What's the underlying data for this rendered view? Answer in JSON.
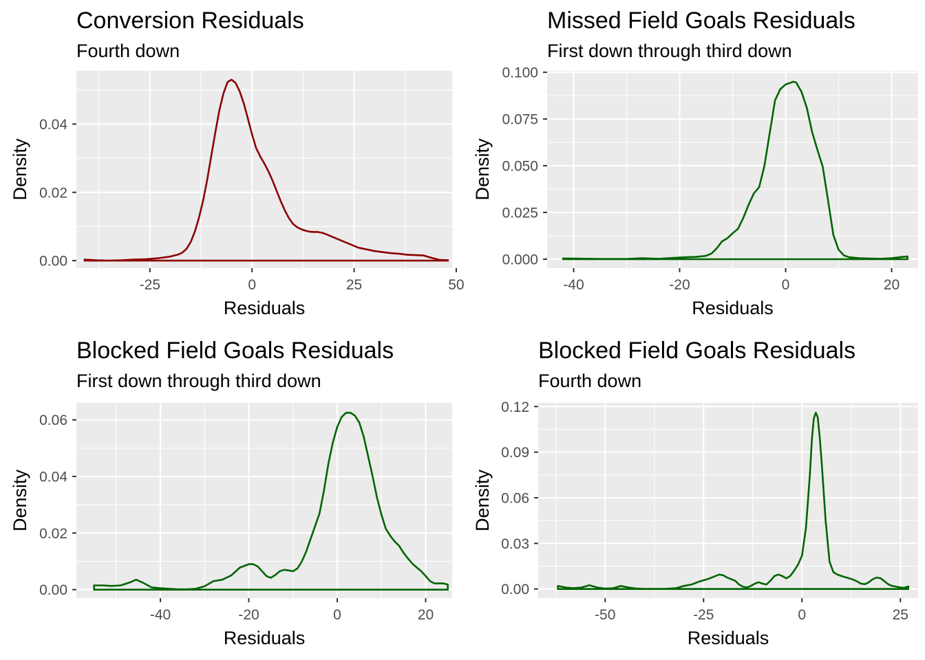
{
  "chart_data": [
    {
      "type": "line",
      "title": "Conversion Residuals",
      "subtitle": "Fourth down",
      "xlabel": "Residuals",
      "ylabel": "Density",
      "xlim": [
        -43,
        49
      ],
      "ylim": [
        -0.0022,
        0.0556
      ],
      "xticks": [
        -25,
        0,
        25,
        50
      ],
      "xtick_labels": [
        "-25",
        "0",
        "25",
        "50"
      ],
      "yticks": [
        0.0,
        0.02,
        0.04
      ],
      "ytick_labels": [
        "0.00",
        "0.02",
        "0.04"
      ],
      "grid": true,
      "color": "#8b0000",
      "series": [
        {
          "x": [
            -41,
            -38,
            -35,
            -32,
            -29,
            -26,
            -23,
            -20,
            -18,
            -17,
            -16,
            -15,
            -14,
            -13,
            -12,
            -11,
            -10,
            -9,
            -8,
            -7,
            -6,
            -5,
            -4,
            -3,
            -2,
            -1,
            0,
            1,
            2,
            3,
            4,
            5,
            6,
            7,
            8,
            9,
            10,
            11,
            12,
            13,
            14,
            15,
            16,
            17,
            18,
            20,
            22,
            24,
            26,
            28,
            30,
            32,
            34,
            36,
            38,
            40,
            42,
            44,
            46,
            48
          ],
          "y": [
            0.0003,
            0.0001,
            0.0,
            0.0001,
            0.0003,
            0.0004,
            0.0007,
            0.0012,
            0.0018,
            0.0024,
            0.0035,
            0.0055,
            0.0085,
            0.0125,
            0.0175,
            0.0235,
            0.0305,
            0.0375,
            0.044,
            0.049,
            0.0523,
            0.053,
            0.052,
            0.0495,
            0.046,
            0.0415,
            0.037,
            0.033,
            0.0305,
            0.0285,
            0.0262,
            0.0235,
            0.0205,
            0.0175,
            0.0148,
            0.0125,
            0.0108,
            0.0098,
            0.0092,
            0.0088,
            0.0085,
            0.0084,
            0.0084,
            0.0082,
            0.0078,
            0.0068,
            0.0058,
            0.0048,
            0.0038,
            0.0033,
            0.0028,
            0.0025,
            0.0022,
            0.002,
            0.0017,
            0.0016,
            0.0015,
            0.0008,
            0.0002,
            0.0001
          ]
        }
      ]
    },
    {
      "type": "line",
      "title": "Missed Field Goals Residuals",
      "subtitle": "First down through third down",
      "xlabel": "Residuals",
      "ylabel": "Density",
      "xlim": [
        -45,
        25
      ],
      "ylim": [
        -0.0048,
        0.1008
      ],
      "xticks": [
        -40,
        -20,
        0,
        20
      ],
      "xtick_labels": [
        "-40",
        "-20",
        "0",
        "20"
      ],
      "yticks": [
        0.0,
        0.025,
        0.05,
        0.075,
        0.1
      ],
      "ytick_labels": [
        "0.000",
        "0.025",
        "0.050",
        "0.075",
        "0.100"
      ],
      "grid": true,
      "color": "#006400",
      "series": [
        {
          "x": [
            -42,
            -40,
            -35,
            -30,
            -27,
            -24,
            -21,
            -19,
            -17,
            -15,
            -14,
            -13,
            -12,
            -11,
            -10,
            -9,
            -8,
            -7,
            -6,
            -5,
            -4,
            -3,
            -2,
            -1,
            0,
            1,
            1.5,
            2,
            3,
            4,
            5,
            6,
            7,
            8,
            9,
            10,
            11,
            12,
            14,
            16,
            18,
            20,
            22,
            23
          ],
          "y": [
            0.0004,
            0.0003,
            0.0001,
            0.0001,
            0.0005,
            0.0002,
            0.0007,
            0.001,
            0.0012,
            0.0018,
            0.003,
            0.0058,
            0.0095,
            0.0112,
            0.0138,
            0.0162,
            0.022,
            0.029,
            0.0352,
            0.0385,
            0.05,
            0.0675,
            0.085,
            0.091,
            0.0935,
            0.0945,
            0.095,
            0.0945,
            0.0895,
            0.081,
            0.068,
            0.0585,
            0.0495,
            0.0315,
            0.013,
            0.005,
            0.002,
            0.001,
            0.0005,
            0.0003,
            0.0002,
            0.0005,
            0.0012,
            0.0014
          ]
        }
      ]
    },
    {
      "type": "line",
      "title": "Blocked Field Goals Residuals",
      "subtitle": "First down through third down",
      "xlabel": "Residuals",
      "ylabel": "Density",
      "xlim": [
        -59,
        26
      ],
      "ylim": [
        -0.003,
        0.066
      ],
      "xticks": [
        -40,
        -20,
        0,
        20
      ],
      "xtick_labels": [
        "-40",
        "-20",
        "0",
        "20"
      ],
      "yticks": [
        0.0,
        0.02,
        0.04,
        0.06
      ],
      "ytick_labels": [
        "0.00",
        "0.02",
        "0.04",
        "0.06"
      ],
      "grid": true,
      "color": "#006400",
      "series": [
        {
          "x": [
            -55,
            -53,
            -51,
            -49,
            -47,
            -45.5,
            -44,
            -42,
            -40,
            -38,
            -36,
            -34,
            -32,
            -30,
            -28,
            -26,
            -24,
            -22,
            -20,
            -19,
            -18,
            -17,
            -16,
            -15,
            -14,
            -13,
            -12,
            -11,
            -10,
            -9,
            -8,
            -7,
            -6,
            -5,
            -4,
            -3,
            -2,
            -1,
            0,
            1,
            2,
            3,
            4,
            5,
            6,
            7,
            8,
            9,
            10,
            11,
            12,
            13,
            14,
            15,
            16,
            17,
            18,
            19,
            20,
            21,
            22,
            23,
            24,
            25
          ],
          "y": [
            0.0015,
            0.0015,
            0.0013,
            0.0015,
            0.0025,
            0.0035,
            0.0025,
            0.0008,
            0.0005,
            0.0003,
            0.0001,
            0.0001,
            0.0003,
            0.0012,
            0.003,
            0.0035,
            0.005,
            0.0078,
            0.009,
            0.009,
            0.0082,
            0.0065,
            0.0048,
            0.0042,
            0.0052,
            0.0065,
            0.007,
            0.0068,
            0.0065,
            0.0075,
            0.01,
            0.0135,
            0.018,
            0.0225,
            0.027,
            0.035,
            0.0445,
            0.052,
            0.0575,
            0.061,
            0.0625,
            0.0625,
            0.0615,
            0.059,
            0.054,
            0.047,
            0.04,
            0.0325,
            0.0265,
            0.0215,
            0.019,
            0.017,
            0.0155,
            0.013,
            0.011,
            0.0092,
            0.0078,
            0.0065,
            0.0048,
            0.003,
            0.0022,
            0.0022,
            0.0022,
            0.0018
          ]
        }
      ]
    },
    {
      "type": "line",
      "title": "Blocked Field Goals Residuals",
      "subtitle": "Fourth down",
      "xlabel": "Residuals",
      "ylabel": "Density",
      "xlim": [
        -67,
        29.5
      ],
      "ylim": [
        -0.006,
        0.1224
      ],
      "xticks": [
        -50,
        -25,
        0,
        25
      ],
      "xtick_labels": [
        "-50",
        "-25",
        "0",
        "25"
      ],
      "yticks": [
        0.0,
        0.03,
        0.06,
        0.09,
        0.12
      ],
      "ytick_labels": [
        "0.00",
        "0.03",
        "0.06",
        "0.09",
        "0.12"
      ],
      "grid": true,
      "color": "#006400",
      "series": [
        {
          "x": [
            -62,
            -60,
            -58,
            -56,
            -54,
            -52,
            -50,
            -48,
            -46,
            -44,
            -42,
            -40,
            -35,
            -32,
            -30,
            -28,
            -26,
            -24,
            -22,
            -21,
            -20,
            -19,
            -18,
            -17,
            -16,
            -15,
            -14,
            -13,
            -12,
            -11,
            -10,
            -9,
            -8,
            -7,
            -6,
            -5,
            -4,
            -3,
            -2,
            -1,
            0,
            1,
            2,
            2.5,
            3,
            3.5,
            4,
            4.5,
            5,
            6,
            7,
            8,
            9,
            10,
            11,
            12,
            13,
            14,
            15,
            16,
            17,
            18,
            19,
            20,
            21,
            22,
            23,
            24,
            25,
            26,
            27
          ],
          "y": [
            0.002,
            0.001,
            0.0005,
            0.001,
            0.0025,
            0.001,
            0.0003,
            0.0005,
            0.002,
            0.001,
            0.0003,
            0.0001,
            0.0001,
            0.0005,
            0.002,
            0.003,
            0.005,
            0.0065,
            0.0085,
            0.0095,
            0.009,
            0.0075,
            0.0065,
            0.0055,
            0.003,
            0.0015,
            0.001,
            0.002,
            0.0035,
            0.0045,
            0.0035,
            0.003,
            0.0055,
            0.0085,
            0.0095,
            0.0085,
            0.007,
            0.0085,
            0.012,
            0.016,
            0.022,
            0.04,
            0.075,
            0.098,
            0.112,
            0.116,
            0.113,
            0.1,
            0.083,
            0.045,
            0.018,
            0.011,
            0.0095,
            0.0085,
            0.0078,
            0.007,
            0.0062,
            0.005,
            0.0035,
            0.0032,
            0.0045,
            0.0065,
            0.0075,
            0.007,
            0.005,
            0.003,
            0.002,
            0.0015,
            0.001,
            0.0008,
            0.0017
          ]
        }
      ]
    }
  ]
}
